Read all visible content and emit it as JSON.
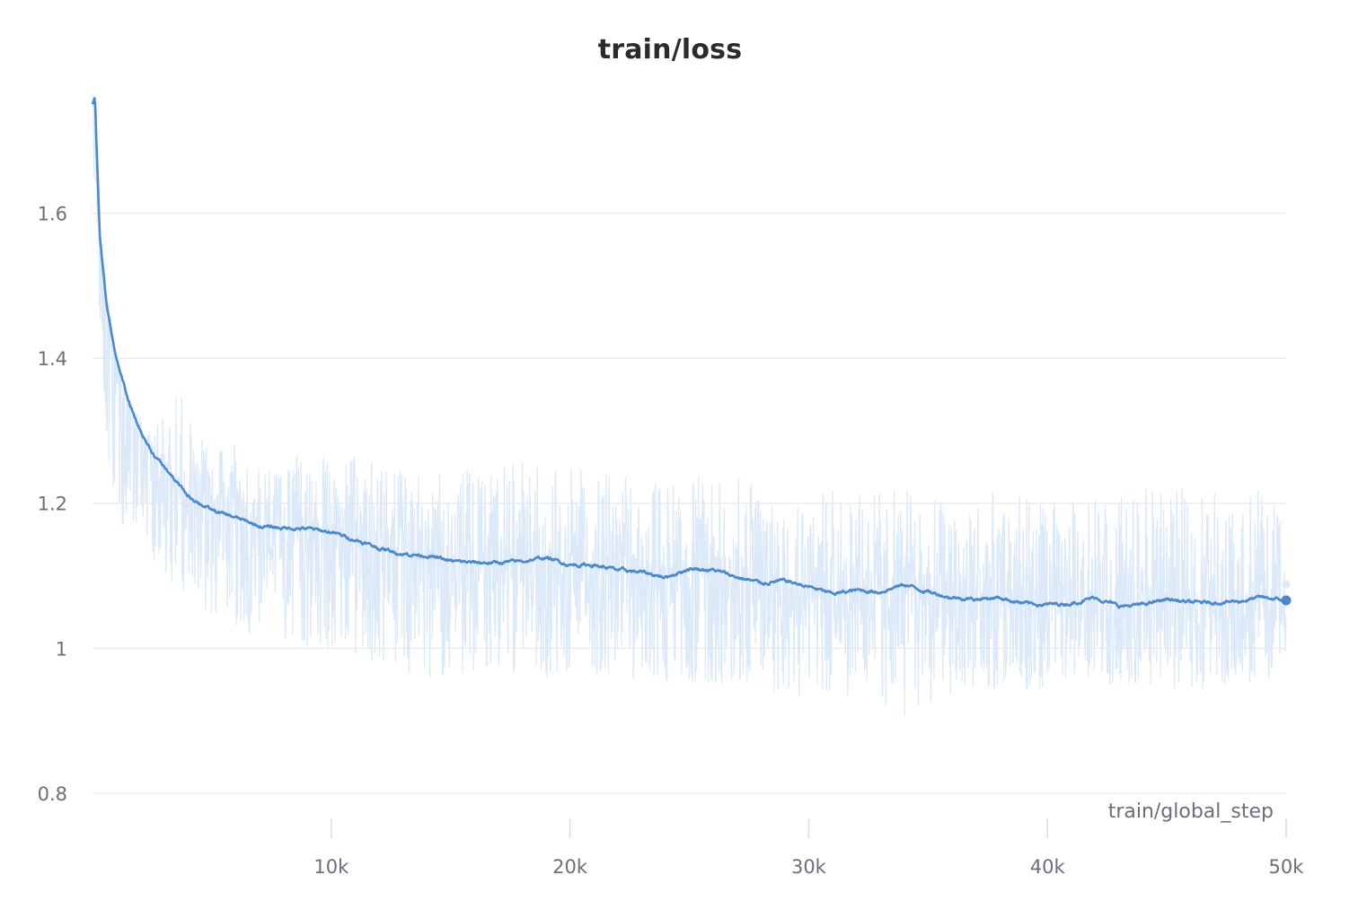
{
  "chart_data": {
    "type": "line",
    "title": "train/loss",
    "xlabel": "train/global_step",
    "ylabel": "",
    "xlim": [
      0,
      50000
    ],
    "ylim": [
      0.8,
      1.78
    ],
    "x_ticks": [
      10000,
      20000,
      30000,
      40000,
      50000
    ],
    "x_tick_labels": [
      "10k",
      "20k",
      "30k",
      "40k",
      "50k"
    ],
    "y_ticks": [
      0.8,
      1.0,
      1.2,
      1.4,
      1.6
    ],
    "y_tick_labels": [
      "0.8",
      "1",
      "1.2",
      "1.4",
      "1.6"
    ],
    "grid": true,
    "legend": "none",
    "colors": {
      "smoothed": "#4a88cf",
      "raw": "#dce9f8"
    },
    "series": [
      {
        "role": "smoothed",
        "x": [
          0,
          100,
          300,
          600,
          1000,
          1500,
          2000,
          2500,
          3000,
          3500,
          4000,
          5000,
          6000,
          7000,
          8000,
          9000,
          10000,
          11000,
          12000,
          13000,
          14000,
          15000,
          16000,
          17000,
          18000,
          19000,
          20000,
          21000,
          22000,
          23000,
          24000,
          25000,
          26000,
          27000,
          28000,
          29000,
          30000,
          31000,
          32000,
          33000,
          34000,
          35000,
          36000,
          37000,
          38000,
          39000,
          40000,
          41000,
          42000,
          43000,
          44000,
          45000,
          46000,
          47000,
          48000,
          49000,
          50000
        ],
        "y": [
          1.75,
          1.76,
          1.57,
          1.47,
          1.4,
          1.34,
          1.3,
          1.27,
          1.25,
          1.23,
          1.21,
          1.19,
          1.18,
          1.168,
          1.166,
          1.165,
          1.16,
          1.15,
          1.138,
          1.13,
          1.128,
          1.12,
          1.118,
          1.118,
          1.12,
          1.125,
          1.115,
          1.115,
          1.108,
          1.105,
          1.098,
          1.11,
          1.108,
          1.098,
          1.09,
          1.093,
          1.085,
          1.075,
          1.08,
          1.078,
          1.088,
          1.078,
          1.07,
          1.068,
          1.07,
          1.062,
          1.06,
          1.062,
          1.07,
          1.058,
          1.06,
          1.068,
          1.063,
          1.063,
          1.065,
          1.07,
          1.066
        ]
      },
      {
        "role": "raw",
        "x": [
          0,
          300,
          600,
          900,
          1200,
          1600,
          2000,
          2500,
          3000,
          3500,
          4000,
          5000,
          6000,
          7000,
          8000,
          9000,
          10000,
          11000,
          12000,
          13000,
          14000,
          15000,
          16000,
          17000,
          18000,
          19000,
          20000,
          22000,
          24000,
          26000,
          28000,
          30000,
          32000,
          34000,
          36000,
          38000,
          40000,
          42000,
          44000,
          46000,
          48000,
          50000
        ],
        "y_low": [
          1.7,
          1.42,
          1.28,
          1.2,
          1.17,
          1.16,
          1.14,
          1.12,
          1.1,
          1.08,
          1.06,
          1.04,
          1.03,
          1.01,
          1.01,
          1.0,
          0.99,
          0.99,
          0.98,
          0.97,
          0.96,
          0.96,
          0.96,
          0.96,
          0.97,
          0.96,
          0.96,
          0.96,
          0.95,
          0.95,
          0.94,
          0.93,
          0.93,
          0.9,
          0.94,
          0.94,
          0.94,
          0.95,
          0.95,
          0.94,
          0.95,
          0.96
        ],
        "y_high": [
          1.79,
          1.62,
          1.5,
          1.42,
          1.38,
          1.34,
          1.32,
          1.3,
          1.32,
          1.36,
          1.33,
          1.28,
          1.28,
          1.25,
          1.26,
          1.27,
          1.26,
          1.27,
          1.25,
          1.25,
          1.24,
          1.24,
          1.25,
          1.25,
          1.26,
          1.25,
          1.25,
          1.24,
          1.23,
          1.24,
          1.23,
          1.22,
          1.22,
          1.22,
          1.21,
          1.22,
          1.2,
          1.21,
          1.22,
          1.22,
          1.24,
          1.2
        ]
      }
    ]
  }
}
